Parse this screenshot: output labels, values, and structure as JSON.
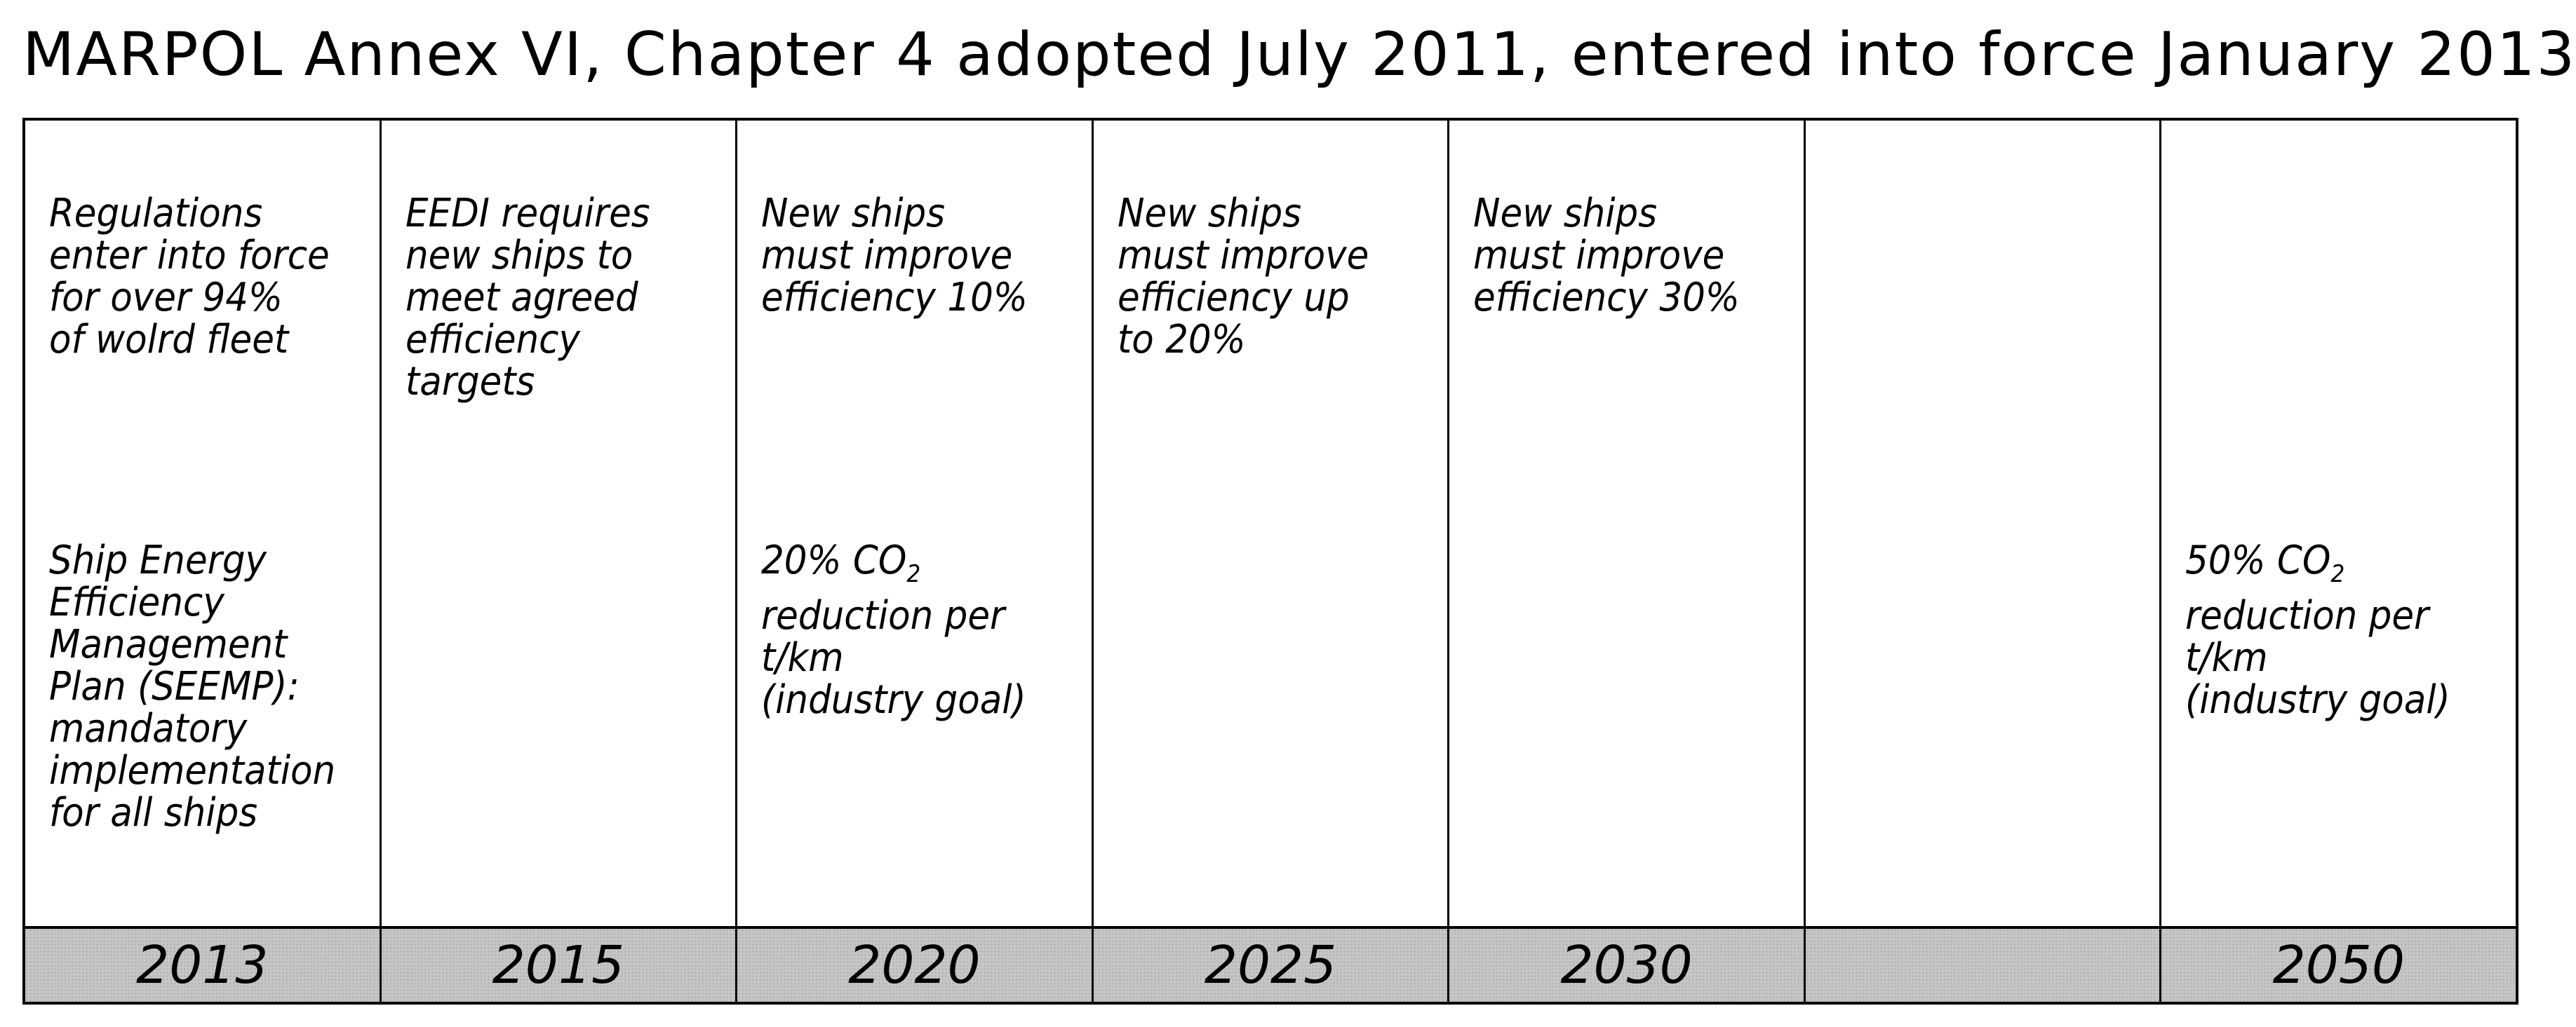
{
  "title": "MARPOL Annex VI, Chapter 4 adopted July 2011, entered into force January 2013",
  "columns": [
    {
      "year": "2013",
      "top": "Regulations\nenter into force\nfor over 94%\nof wolrd fleet",
      "bottom": "Ship Energy\nEfficiency\nManagement\nPlan (SEEMP):\nmandatory\nimplementation\nfor all ships"
    },
    {
      "year": "2015",
      "top": "EEDI requires\nnew ships to\nmeet agreed\nefficiency\ntargets",
      "bottom": ""
    },
    {
      "year": "2020",
      "top": "New ships\nmust improve\nefficiency 10%",
      "bottom_pre": "20% CO",
      "bottom_sub": "2",
      "bottom_post": "\nreduction per\nt/km\n(industry goal)"
    },
    {
      "year": "2025",
      "top": "New ships\nmust improve\nefficiency up\nto 20%",
      "bottom": ""
    },
    {
      "year": "2030",
      "top": "New ships\nmust improve\nefficiency 30%",
      "bottom": ""
    },
    {
      "year": "",
      "top": "",
      "bottom": ""
    },
    {
      "year": "2050",
      "top": "",
      "bottom_pre": "50% CO",
      "bottom_sub": "2",
      "bottom_post": "\nreduction per\nt/km\n(industry goal)"
    }
  ]
}
